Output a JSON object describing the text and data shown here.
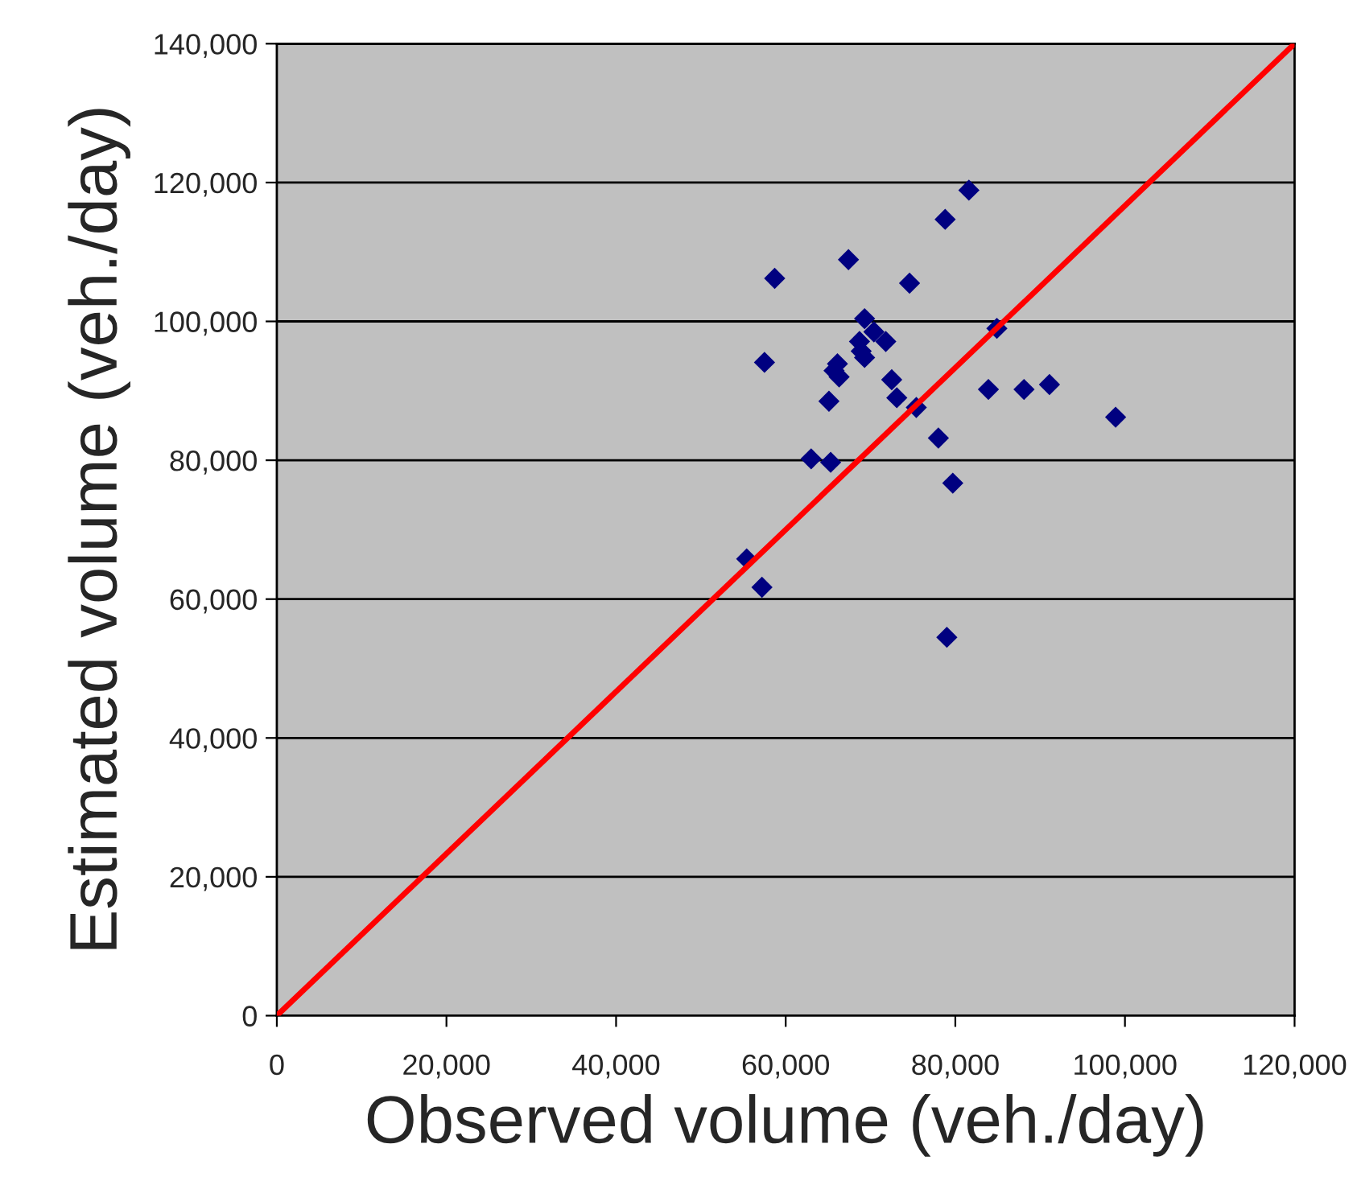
{
  "chart_data": {
    "type": "scatter",
    "xlabel": "Observed volume (veh./day)",
    "ylabel": "Estimated volume (veh./day)",
    "xlim": [
      0,
      120000
    ],
    "ylim": [
      0,
      140000
    ],
    "xticks": [
      0,
      {
        "value": 20000,
        "label": "20,000"
      },
      {
        "value": 40000,
        "label": "40,000"
      },
      {
        "value": 60000,
        "label": "60,000"
      },
      {
        "value": 80000,
        "label": "80,000"
      },
      {
        "value": 100000,
        "label": "100,000"
      },
      {
        "value": 120000,
        "label": "120,000"
      }
    ],
    "yticks": [
      0,
      {
        "value": 20000,
        "label": "20,000"
      },
      {
        "value": 40000,
        "label": "40,000"
      },
      {
        "value": 60000,
        "label": "60,000"
      },
      {
        "value": 80000,
        "label": "80,000"
      },
      {
        "value": 100000,
        "label": "100,000"
      },
      {
        "value": 120000,
        "label": "120,000"
      },
      {
        "value": 140000,
        "label": "140,000"
      }
    ],
    "grid": "y",
    "legend": false,
    "marker": "diamond",
    "series": [
      {
        "color": "#000080",
        "x": [
          81600,
          78800,
          67400,
          58700,
          74600,
          69300,
          84900,
          70400,
          71800,
          68700,
          68900,
          69300,
          57500,
          66100,
          65700,
          66300,
          72500,
          91100,
          83900,
          88100,
          73100,
          65100,
          75400,
          98900,
          78000,
          63000,
          65300,
          79700,
          55400,
          57200,
          79000
        ],
        "values": [
          118900,
          114700,
          108900,
          106200,
          105500,
          100400,
          99000,
          98500,
          97100,
          97100,
          95700,
          94800,
          94100,
          93900,
          92900,
          92000,
          91600,
          90900,
          90200,
          90200,
          89000,
          88500,
          87600,
          86200,
          83200,
          80200,
          79700,
          76700,
          65800,
          61700,
          54500
        ]
      },
      {
        "type": "line",
        "color": "#ff0000",
        "marker": "none",
        "line_style": "solid",
        "x": [
          0,
          120000
        ],
        "values": [
          0,
          140000
        ]
      }
    ]
  }
}
